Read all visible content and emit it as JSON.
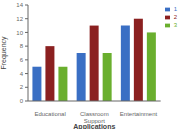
{
  "chart_data": {
    "type": "bar",
    "xlabel": "Applications",
    "ylabel": "Frequency",
    "categories": [
      "Educational",
      "Classroom Support",
      "Entertainment"
    ],
    "series": [
      {
        "name": "1",
        "color": "#3A6FC4",
        "values": [
          5,
          7,
          11
        ]
      },
      {
        "name": "2",
        "color": "#8B2020",
        "values": [
          8,
          11,
          12
        ]
      },
      {
        "name": "3",
        "color": "#6AAF2E",
        "values": [
          5,
          7,
          10
        ]
      }
    ],
    "ylim": [
      0,
      14
    ],
    "yticks": [
      0,
      2,
      4,
      6,
      8,
      10,
      12,
      14
    ],
    "grid": false,
    "legend": "right"
  }
}
